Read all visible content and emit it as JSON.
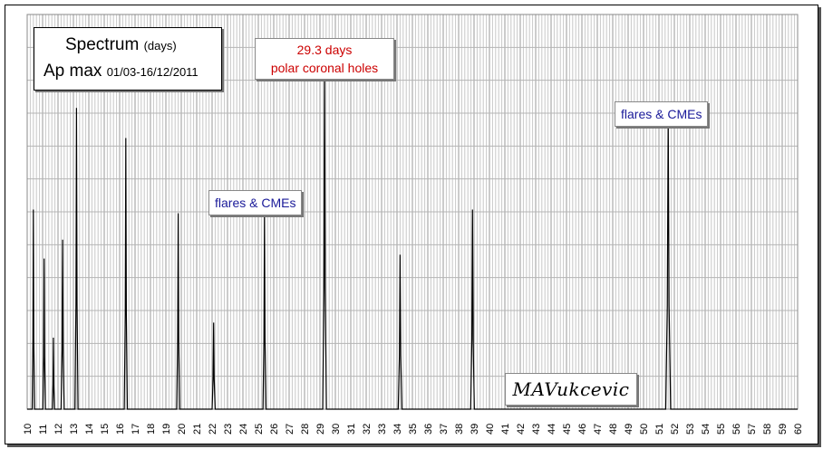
{
  "chart_data": {
    "type": "line",
    "title_line1": "Spectrum",
    "title_line1_unit": "(days)",
    "title_line2": "Ap max",
    "title_line2_range": "01/03-16/12/2011",
    "xlim": [
      10,
      60
    ],
    "ylim": [
      0,
      1
    ],
    "grid": "on",
    "x_ticks": [
      10,
      11,
      12,
      13,
      14,
      15,
      16,
      17,
      18,
      19,
      20,
      21,
      22,
      23,
      24,
      25,
      26,
      27,
      28,
      29,
      30,
      31,
      32,
      33,
      34,
      35,
      36,
      37,
      38,
      39,
      40,
      41,
      42,
      43,
      44,
      45,
      46,
      47,
      48,
      49,
      50,
      51,
      52,
      53,
      54,
      55,
      56,
      57,
      58,
      59,
      60
    ],
    "line_color": "#000000",
    "peaks": [
      {
        "x": 10.4,
        "y": 0.53,
        "w": 0.08
      },
      {
        "x": 11.1,
        "y": 0.4,
        "w": 0.08
      },
      {
        "x": 11.7,
        "y": 0.19,
        "w": 0.07
      },
      {
        "x": 12.3,
        "y": 0.45,
        "w": 0.1
      },
      {
        "x": 13.2,
        "y": 0.8,
        "w": 0.1
      },
      {
        "x": 16.4,
        "y": 0.72,
        "w": 0.1
      },
      {
        "x": 19.8,
        "y": 0.52,
        "w": 0.1
      },
      {
        "x": 22.1,
        "y": 0.23,
        "w": 0.1
      },
      {
        "x": 25.4,
        "y": 0.53,
        "w": 0.1
      },
      {
        "x": 29.3,
        "y": 0.91,
        "w": 0.12
      },
      {
        "x": 34.2,
        "y": 0.41,
        "w": 0.12
      },
      {
        "x": 38.9,
        "y": 0.53,
        "w": 0.12
      },
      {
        "x": 51.6,
        "y": 0.79,
        "w": 0.16
      }
    ],
    "annotations": [
      {
        "line1": "29.3 days",
        "line2": "polar coronal holes",
        "color": "#cc0000"
      },
      {
        "line1": "flares & CMEs",
        "color": "#1a1a99"
      },
      {
        "line1": "flares & CMEs",
        "color": "#1a1a99"
      }
    ]
  },
  "signature": "MAVukcevic"
}
